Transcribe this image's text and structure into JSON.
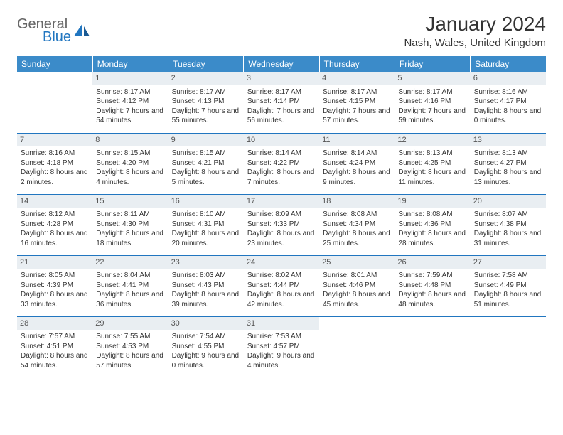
{
  "brand": {
    "general": "General",
    "blue": "Blue"
  },
  "title": "January 2024",
  "location": "Nash, Wales, United Kingdom",
  "colors": {
    "header_bg": "#3b8bc9",
    "header_text": "#ffffff",
    "daynum_bg": "#e9eef2",
    "rule": "#2176c0",
    "brand_gray": "#666666",
    "brand_blue": "#2176c0"
  },
  "fonts": {
    "title_pt": 28,
    "location_pt": 15,
    "header_pt": 12,
    "daynum_pt": 11,
    "body_pt": 10
  },
  "day_headers": [
    "Sunday",
    "Monday",
    "Tuesday",
    "Wednesday",
    "Thursday",
    "Friday",
    "Saturday"
  ],
  "weeks": [
    [
      null,
      {
        "d": "1",
        "sr": "8:17 AM",
        "ss": "4:12 PM",
        "dl": "7 hours and 54 minutes."
      },
      {
        "d": "2",
        "sr": "8:17 AM",
        "ss": "4:13 PM",
        "dl": "7 hours and 55 minutes."
      },
      {
        "d": "3",
        "sr": "8:17 AM",
        "ss": "4:14 PM",
        "dl": "7 hours and 56 minutes."
      },
      {
        "d": "4",
        "sr": "8:17 AM",
        "ss": "4:15 PM",
        "dl": "7 hours and 57 minutes."
      },
      {
        "d": "5",
        "sr": "8:17 AM",
        "ss": "4:16 PM",
        "dl": "7 hours and 59 minutes."
      },
      {
        "d": "6",
        "sr": "8:16 AM",
        "ss": "4:17 PM",
        "dl": "8 hours and 0 minutes."
      }
    ],
    [
      {
        "d": "7",
        "sr": "8:16 AM",
        "ss": "4:18 PM",
        "dl": "8 hours and 2 minutes."
      },
      {
        "d": "8",
        "sr": "8:15 AM",
        "ss": "4:20 PM",
        "dl": "8 hours and 4 minutes."
      },
      {
        "d": "9",
        "sr": "8:15 AM",
        "ss": "4:21 PM",
        "dl": "8 hours and 5 minutes."
      },
      {
        "d": "10",
        "sr": "8:14 AM",
        "ss": "4:22 PM",
        "dl": "8 hours and 7 minutes."
      },
      {
        "d": "11",
        "sr": "8:14 AM",
        "ss": "4:24 PM",
        "dl": "8 hours and 9 minutes."
      },
      {
        "d": "12",
        "sr": "8:13 AM",
        "ss": "4:25 PM",
        "dl": "8 hours and 11 minutes."
      },
      {
        "d": "13",
        "sr": "8:13 AM",
        "ss": "4:27 PM",
        "dl": "8 hours and 13 minutes."
      }
    ],
    [
      {
        "d": "14",
        "sr": "8:12 AM",
        "ss": "4:28 PM",
        "dl": "8 hours and 16 minutes."
      },
      {
        "d": "15",
        "sr": "8:11 AM",
        "ss": "4:30 PM",
        "dl": "8 hours and 18 minutes."
      },
      {
        "d": "16",
        "sr": "8:10 AM",
        "ss": "4:31 PM",
        "dl": "8 hours and 20 minutes."
      },
      {
        "d": "17",
        "sr": "8:09 AM",
        "ss": "4:33 PM",
        "dl": "8 hours and 23 minutes."
      },
      {
        "d": "18",
        "sr": "8:08 AM",
        "ss": "4:34 PM",
        "dl": "8 hours and 25 minutes."
      },
      {
        "d": "19",
        "sr": "8:08 AM",
        "ss": "4:36 PM",
        "dl": "8 hours and 28 minutes."
      },
      {
        "d": "20",
        "sr": "8:07 AM",
        "ss": "4:38 PM",
        "dl": "8 hours and 31 minutes."
      }
    ],
    [
      {
        "d": "21",
        "sr": "8:05 AM",
        "ss": "4:39 PM",
        "dl": "8 hours and 33 minutes."
      },
      {
        "d": "22",
        "sr": "8:04 AM",
        "ss": "4:41 PM",
        "dl": "8 hours and 36 minutes."
      },
      {
        "d": "23",
        "sr": "8:03 AM",
        "ss": "4:43 PM",
        "dl": "8 hours and 39 minutes."
      },
      {
        "d": "24",
        "sr": "8:02 AM",
        "ss": "4:44 PM",
        "dl": "8 hours and 42 minutes."
      },
      {
        "d": "25",
        "sr": "8:01 AM",
        "ss": "4:46 PM",
        "dl": "8 hours and 45 minutes."
      },
      {
        "d": "26",
        "sr": "7:59 AM",
        "ss": "4:48 PM",
        "dl": "8 hours and 48 minutes."
      },
      {
        "d": "27",
        "sr": "7:58 AM",
        "ss": "4:49 PM",
        "dl": "8 hours and 51 minutes."
      }
    ],
    [
      {
        "d": "28",
        "sr": "7:57 AM",
        "ss": "4:51 PM",
        "dl": "8 hours and 54 minutes."
      },
      {
        "d": "29",
        "sr": "7:55 AM",
        "ss": "4:53 PM",
        "dl": "8 hours and 57 minutes."
      },
      {
        "d": "30",
        "sr": "7:54 AM",
        "ss": "4:55 PM",
        "dl": "9 hours and 0 minutes."
      },
      {
        "d": "31",
        "sr": "7:53 AM",
        "ss": "4:57 PM",
        "dl": "9 hours and 4 minutes."
      },
      null,
      null,
      null
    ]
  ],
  "labels": {
    "sunrise": "Sunrise: ",
    "sunset": "Sunset: ",
    "daylight": "Daylight: "
  }
}
